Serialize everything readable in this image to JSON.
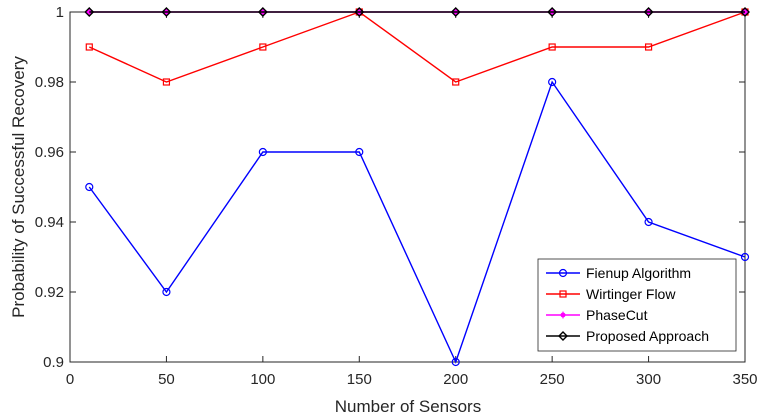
{
  "chart_data": {
    "type": "line",
    "title": "",
    "xlabel": "Number of Sensors",
    "ylabel": "Probability of Successful Recovery",
    "xlim": [
      0,
      350
    ],
    "ylim": [
      0.9,
      1.0
    ],
    "x_ticks": [
      0,
      50,
      100,
      150,
      200,
      250,
      300,
      350
    ],
    "x_tick_labels": [
      "0",
      "50",
      "100",
      "150",
      "200",
      "250",
      "300",
      "350"
    ],
    "y_ticks": [
      0.9,
      0.92,
      0.94,
      0.96,
      0.98,
      1.0
    ],
    "y_tick_labels": [
      "0.9",
      "0.92",
      "0.94",
      "0.96",
      "0.98",
      "1"
    ],
    "grid": false,
    "legend_position": "bottom-right",
    "x": [
      10,
      50,
      100,
      150,
      200,
      250,
      300,
      350
    ],
    "series": [
      {
        "name": "Fienup Algorithm",
        "color": "#0000ff",
        "marker": "circle",
        "values": [
          0.95,
          0.92,
          0.96,
          0.96,
          0.9,
          0.98,
          0.94,
          0.93
        ]
      },
      {
        "name": "Wirtinger Flow",
        "color": "#ff0000",
        "marker": "square",
        "values": [
          0.99,
          0.98,
          0.99,
          1.0,
          0.98,
          0.99,
          0.99,
          1.0
        ]
      },
      {
        "name": "PhaseCut",
        "color": "#ff00ff",
        "marker": "asterisk",
        "values": [
          1.0,
          1.0,
          1.0,
          1.0,
          1.0,
          1.0,
          1.0,
          1.0
        ]
      },
      {
        "name": "Proposed Approach",
        "color": "#000000",
        "marker": "diamond",
        "values": [
          1.0,
          1.0,
          1.0,
          1.0,
          1.0,
          1.0,
          1.0,
          1.0
        ]
      }
    ]
  }
}
